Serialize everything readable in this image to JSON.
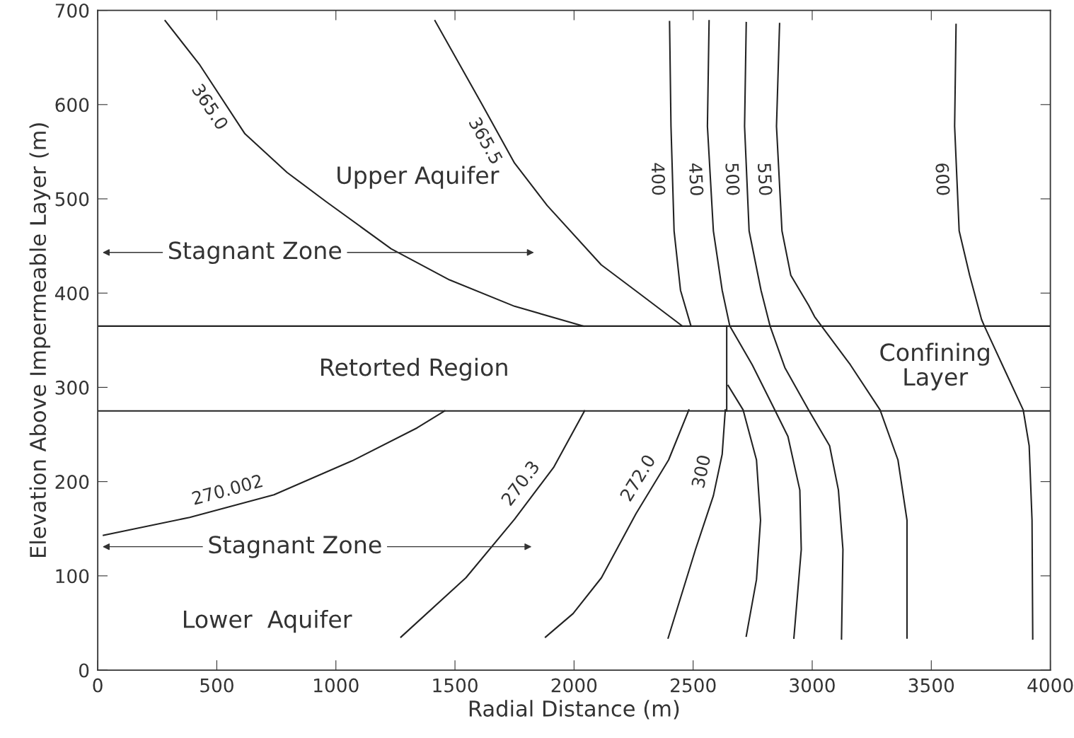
{
  "chart_data": {
    "type": "line",
    "xlabel": "Radial Distance (m)",
    "ylabel": "Elevation Above Impermeable Layer (m)",
    "xlim": [
      0,
      4000
    ],
    "xticks": [
      0,
      500,
      1000,
      1500,
      2000,
      2500,
      3000,
      3500,
      4000
    ],
    "ylim": [
      0,
      700
    ],
    "yticks": [
      0,
      100,
      200,
      300,
      400,
      500,
      600,
      700
    ],
    "grid": false,
    "marker": "none",
    "line_style": "solid",
    "ref_lines": [
      {
        "axis": "y",
        "value": 365,
        "color": "#222222"
      },
      {
        "axis": "y",
        "value": 275,
        "color": "#222222"
      }
    ],
    "annotations": [
      "Upper Aquifer",
      "Stagnant Zone",
      "Retorted Region",
      "Confining\nLayer",
      "Stagnant Zone",
      "Lower  Aquifer"
    ],
    "series": [
      {
        "name": "365.0",
        "color": "#222222",
        "x": [
          283,
          426,
          618,
          795,
          959,
          1232,
          1477,
          1750,
          2040
        ],
        "values": [
          689,
          643,
          569,
          528,
          497,
          447,
          414,
          386,
          365
        ]
      },
      {
        "name": "365.5",
        "color": "#222222",
        "x": [
          1416,
          1614,
          1750,
          1887,
          2114,
          2272,
          2455
        ],
        "values": [
          689,
          600,
          538,
          493,
          430,
          400,
          365
        ]
      },
      {
        "name": "400",
        "color": "#222222",
        "x": [
          2401,
          2407,
          2420,
          2447,
          2491
        ],
        "values": [
          688,
          577,
          466,
          403,
          365
        ]
      },
      {
        "name": "450",
        "color": "#222222",
        "x": [
          2567,
          2560,
          2585,
          2622,
          2654,
          2748,
          2835,
          2898,
          2948,
          2954,
          2923
        ],
        "values": [
          689,
          577,
          466,
          403,
          365,
          324,
          280,
          248,
          191,
          128,
          34
        ]
      },
      {
        "name": "500",
        "color": "#222222",
        "x": [
          2723,
          2716,
          2735,
          2785,
          2823,
          2885,
          2985,
          3073,
          3110,
          3129,
          3123
        ],
        "values": [
          687,
          577,
          466,
          403,
          365,
          321,
          276,
          238,
          191,
          128,
          33
        ]
      },
      {
        "name": "550",
        "color": "#222222",
        "x": [
          2863,
          2850,
          2873,
          2910,
          2985,
          3010,
          3160,
          3285,
          3360,
          3398,
          3398
        ],
        "values": [
          686,
          577,
          466,
          419,
          387,
          375,
          324,
          276,
          223,
          159,
          34
        ]
      },
      {
        "name": "600",
        "color": "#222222",
        "x": [
          3604,
          3598,
          3617,
          3661,
          3711,
          3723,
          3798,
          3886,
          3911,
          3923,
          3926
        ],
        "values": [
          685,
          577,
          466,
          419,
          372,
          365,
          324,
          276,
          238,
          159,
          33
        ]
      },
      {
        "color": "#222222",
        "x": [
          2641,
          2641
        ],
        "values": [
          365,
          275
        ]
      },
      {
        "color": "#222222",
        "x": [
          2647,
          2710,
          2766,
          2783,
          2766,
          2723
        ],
        "values": [
          302,
          276,
          223,
          159,
          96,
          36
        ]
      },
      {
        "name": "300",
        "color": "#222222",
        "x": [
          2635,
          2622,
          2585,
          2510,
          2395
        ],
        "values": [
          276,
          229,
          185,
          128,
          34
        ]
      },
      {
        "name": "272.0",
        "color": "#222222",
        "x": [
          2482,
          2397,
          2260,
          2115,
          1996,
          1880
        ],
        "values": [
          276,
          223,
          166,
          98,
          60,
          35
        ]
      },
      {
        "name": "270.3",
        "color": "#222222",
        "x": [
          2044,
          1914,
          1750,
          1546,
          1273
        ],
        "values": [
          275,
          215,
          160,
          98,
          35
        ]
      },
      {
        "name": "270.002",
        "color": "#222222",
        "x": [
          24,
          386,
          740,
          1068,
          1341,
          1457
        ],
        "values": [
          143,
          162,
          186,
          222,
          257,
          275
        ]
      }
    ]
  }
}
